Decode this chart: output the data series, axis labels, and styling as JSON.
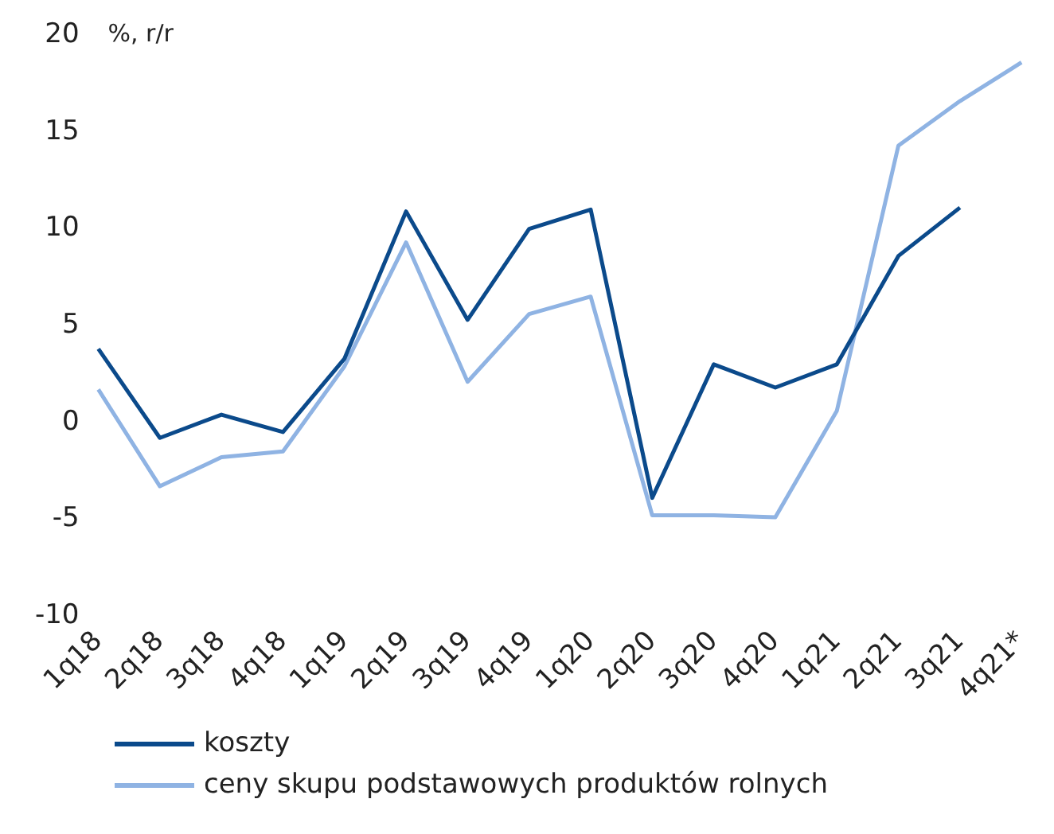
{
  "chart_data": {
    "type": "line",
    "ylabel": "%, r/r",
    "categories": [
      "1q18",
      "2q18",
      "3q18",
      "4q18",
      "1q19",
      "2q19",
      "3q19",
      "4q19",
      "1q20",
      "2q20",
      "3q20",
      "4q20",
      "1q21",
      "2q21",
      "3q21",
      "4q21*"
    ],
    "series": [
      {
        "name": "koszty",
        "color": "#0b4a8b",
        "values": [
          3.8,
          -0.8,
          0.4,
          -0.5,
          3.3,
          10.9,
          5.3,
          10.0,
          11.0,
          -3.9,
          3.0,
          1.8,
          3.0,
          8.6,
          11.1,
          null
        ]
      },
      {
        "name": "ceny skupu podstawowych produktów rolnych",
        "color": "#8fb3e3",
        "values": [
          1.7,
          -3.3,
          -1.8,
          -1.5,
          2.9,
          9.3,
          2.1,
          5.6,
          6.5,
          -4.8,
          -4.8,
          -4.9,
          0.6,
          14.3,
          16.6,
          18.6
        ]
      }
    ],
    "ylim": [
      -10,
      20
    ],
    "yticks": [
      -10,
      -5,
      0,
      5,
      10,
      15,
      20
    ],
    "grid": false,
    "legend": "bottom",
    "marker": "none",
    "line_style": "solid"
  }
}
